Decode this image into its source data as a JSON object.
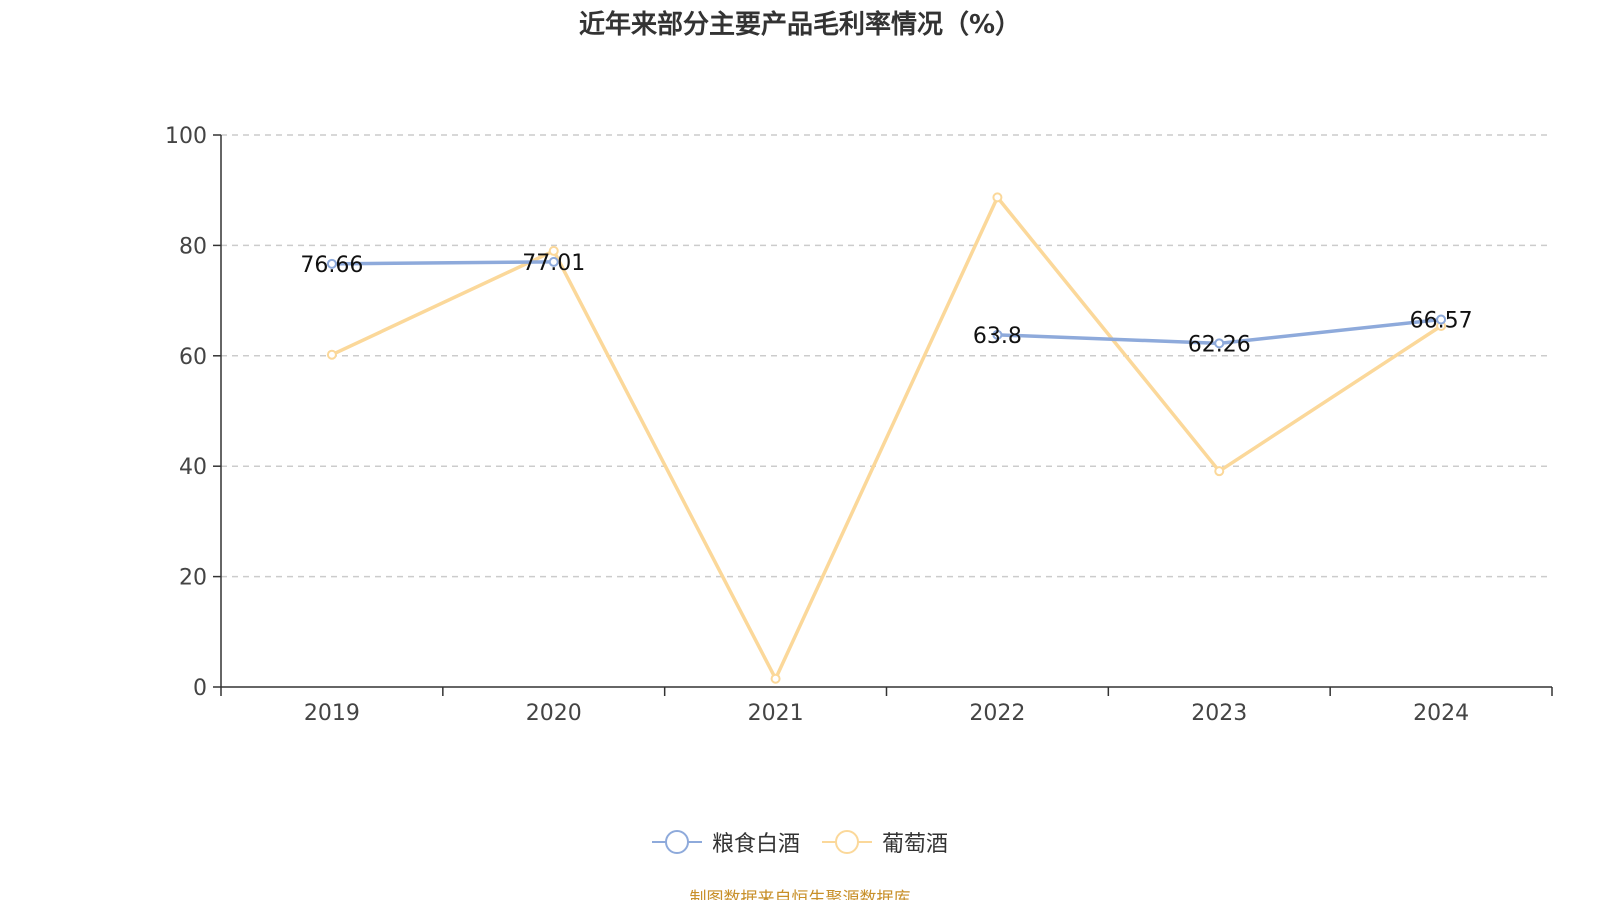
{
  "chart_data": {
    "type": "line",
    "title": "近年来部分主要产品毛利率情况（%）",
    "categories": [
      "2019",
      "2020",
      "2021",
      "2022",
      "2023",
      "2024"
    ],
    "ylim": [
      0,
      100
    ],
    "yticks": [
      0,
      20,
      40,
      60,
      80,
      100
    ],
    "grid": true,
    "legend_position": "bottom",
    "series": [
      {
        "name": "粮食白酒",
        "color": "#8eaadb",
        "values": [
          76.66,
          77.01,
          null,
          63.8,
          62.26,
          66.57
        ],
        "labels": [
          "76.66",
          "77.01",
          "",
          "63.8",
          "62.26",
          "66.57"
        ]
      },
      {
        "name": "葡萄酒",
        "color": "#fbd89a",
        "values": [
          60.2,
          79.0,
          1.5,
          88.7,
          39.1,
          65.4
        ],
        "labels": [
          "",
          "",
          "",
          "",
          "",
          ""
        ]
      }
    ]
  },
  "source_note": "制图数据来自恒生聚源数据库"
}
